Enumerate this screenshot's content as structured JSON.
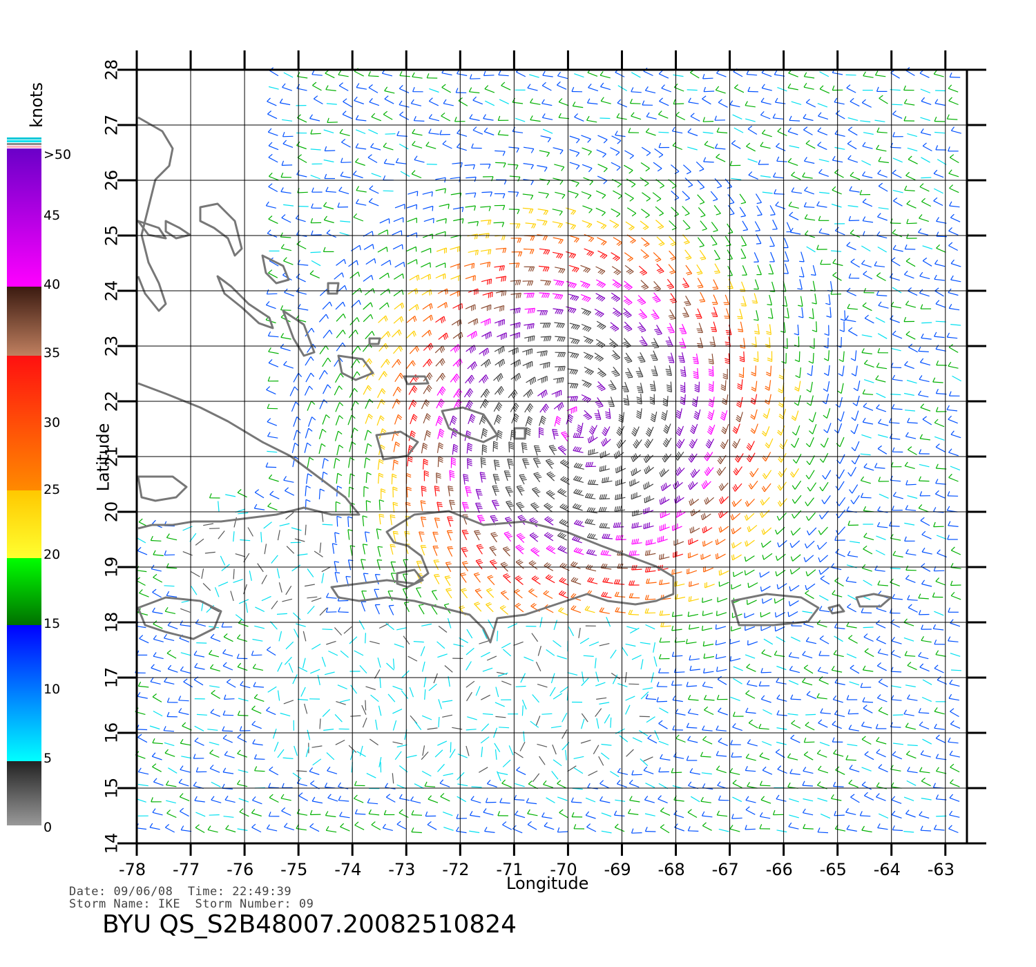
{
  "title_line": "BYU QS_S2B48007.20082510824",
  "info": {
    "date_label": "Date:",
    "date": "09/06/08",
    "time_label": "Time:",
    "time": "22:49:39",
    "storm_name_label": "Storm Name:",
    "storm_name": "IKE",
    "storm_number_label": "Storm Number:",
    "storm_number": "09"
  },
  "axes": {
    "xlabel": "Longitude",
    "ylabel": "Latitude",
    "x_ticks": [
      "-78",
      "-77",
      "-76",
      "-75",
      "-74",
      "-73",
      "-72",
      "-71",
      "-70",
      "-69",
      "-68",
      "-67",
      "-66",
      "-65",
      "-64",
      "-63"
    ],
    "y_ticks": [
      "14",
      "15",
      "16",
      "17",
      "18",
      "19",
      "20",
      "21",
      "22",
      "23",
      "24",
      "25",
      "26",
      "27",
      "28"
    ],
    "x_range": [
      -78,
      -62.6
    ],
    "y_range": [
      14,
      28
    ]
  },
  "colorbar": {
    "unit": "knots",
    "labels": [
      ">50",
      "45",
      "40",
      "35",
      "30",
      "25",
      "20",
      "15",
      "10",
      "5",
      "0"
    ],
    "levels": [
      50,
      45,
      40,
      35,
      30,
      25,
      20,
      15,
      10,
      5,
      0
    ],
    "colors": {
      "0-5": "#555555",
      "5-10": "#00e0f0",
      "10-15": "#0050ff",
      "15-20": "#00b000",
      "20-25": "#ffd000",
      "25-30": "#ff6000",
      "30-35": "#ff1010",
      "35-40": "#8a4a30",
      "40-45": "#ff00ff",
      "45-50": "#8000c0",
      ">50": "#444444"
    }
  },
  "storm_center": {
    "lon": -69.8,
    "lat": 21.6
  },
  "map": {
    "land_color": "#777777",
    "grid_color": "#000000"
  }
}
